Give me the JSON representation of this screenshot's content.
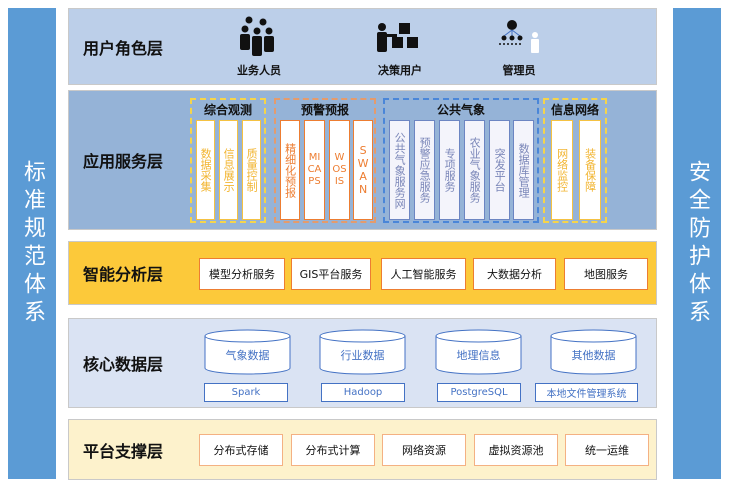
{
  "left_bar": "标准规范体系",
  "right_bar": "安全防护体系",
  "user_layer": {
    "title": "用户角色层",
    "roles": [
      {
        "label": "业务人员",
        "icon": "group-people-icon"
      },
      {
        "label": "决策用户",
        "icon": "decision-user-icon"
      },
      {
        "label": "管理员",
        "icon": "admin-hierarchy-icon"
      }
    ]
  },
  "app_layer": {
    "title": "应用服务层",
    "groups": [
      {
        "title": "综合观测",
        "color": "#f5d44a",
        "text_color": "#f2b531",
        "items": [
          "数据采集",
          "信息展示",
          "质量控制"
        ]
      },
      {
        "title": "预警预报",
        "color": "#ed7d31",
        "text_color": "#ed7d31",
        "items": [
          "精细化预报",
          "MICAPS",
          "WOSIS",
          "SWAN"
        ]
      },
      {
        "title": "公共气象",
        "color": "#4a86d8",
        "text_color": "#7a86b8",
        "items": [
          "公共气象服务网",
          "预警应急服务",
          "专项服务",
          "农业气象服务",
          "突发平台",
          "数据库管理"
        ]
      },
      {
        "title": "信息网络",
        "color": "#f5d44a",
        "text_color": "#f2b531",
        "items": [
          "网络监控",
          "装备保障"
        ]
      }
    ]
  },
  "analysis_layer": {
    "title": "智能分析层",
    "items": [
      "模型分析服务",
      "GIS平台服务",
      "人工智能服务",
      "大数据分析",
      "地图服务"
    ]
  },
  "data_layer": {
    "title": "核心数据层",
    "stores": [
      "气象数据",
      "行业数据",
      "地理信息",
      "其他数据"
    ],
    "tech": [
      "Spark",
      "Hadoop",
      "PostgreSQL",
      "本地文件管理系统"
    ]
  },
  "platform_layer": {
    "title": "平台支撑层",
    "items": [
      "分布式存储",
      "分布式计算",
      "网络资源",
      "虚拟资源池",
      "统一运维"
    ]
  }
}
